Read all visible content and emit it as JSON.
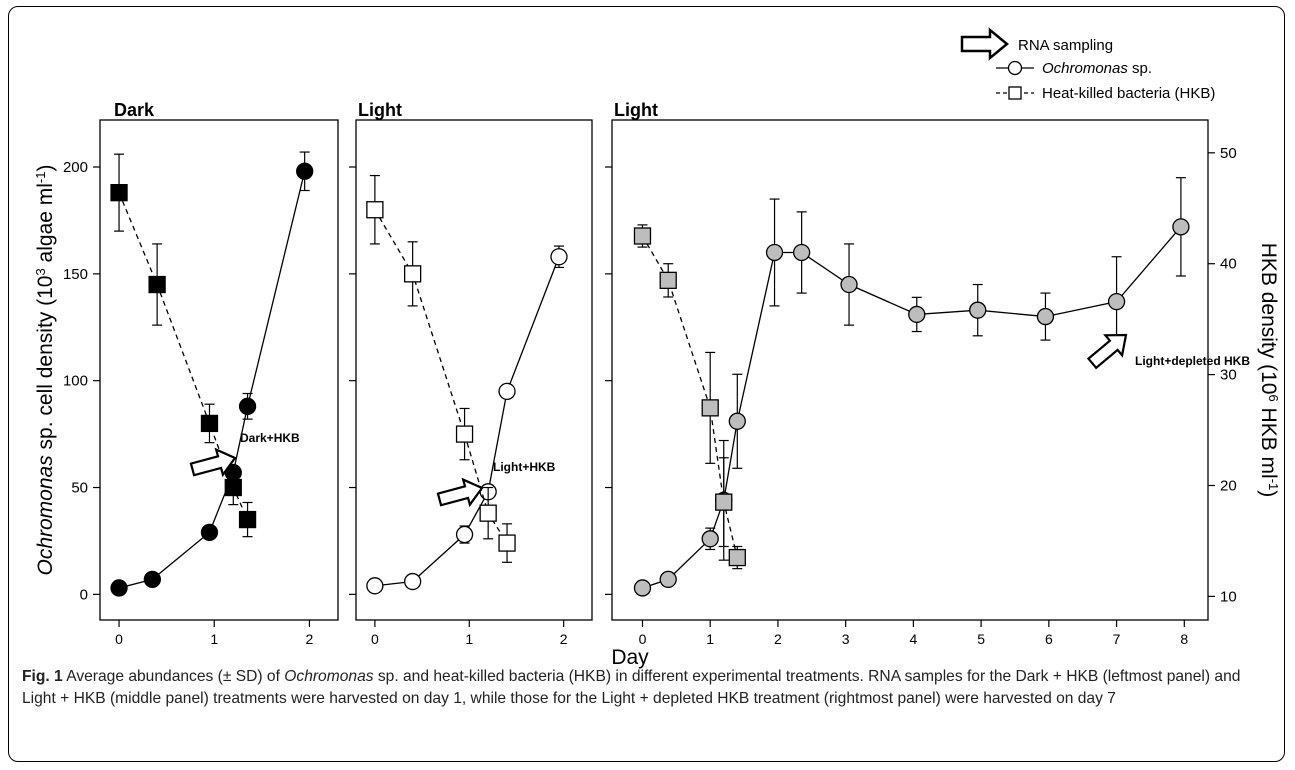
{
  "legend": {
    "arrow_label": "RNA sampling",
    "ochro_label_italic": "Ochromonas",
    "ochro_label_rest": " sp.",
    "hkb_label": "Heat-killed bacteria (HKB)"
  },
  "y_left_label": {
    "italic": "Ochromonas",
    "text": " sp. cell density (10",
    "sup": "3",
    "text2": " algae ml",
    "sup2": "-1",
    "text3": ")"
  },
  "y_right_label": {
    "text": "HKB density (10",
    "sup": "6",
    "text2": " HKB ml",
    "sup2": "-1",
    "text3": ")"
  },
  "x_label": "Day",
  "chart_data": [
    {
      "type": "scatter",
      "title": "Dark",
      "xlim": [
        -0.2,
        2.3
      ],
      "ylim": [
        -12,
        222
      ],
      "xticks": [
        0,
        1,
        2
      ],
      "yticks": [
        0,
        50,
        100,
        150,
        200
      ],
      "annotation": "Dark+HKB",
      "fill": "#000000",
      "series": [
        {
          "name": "Ochromonas sp.",
          "marker": "circle",
          "x": [
            0,
            0.35,
            0.95,
            1.2,
            1.35,
            1.95
          ],
          "y": [
            3,
            7,
            29,
            57,
            88,
            198
          ],
          "err": [
            0,
            0,
            0,
            3,
            6,
            9
          ]
        },
        {
          "name": "Heat-killed bacteria (HKB)",
          "marker": "square",
          "x": [
            0,
            0.4,
            0.95,
            1.2,
            1.35
          ],
          "y": [
            188,
            145,
            80,
            50,
            35
          ],
          "err": [
            18,
            19,
            9,
            8,
            8
          ]
        }
      ]
    },
    {
      "type": "scatter",
      "title": "Light",
      "xlim": [
        -0.2,
        2.3
      ],
      "ylim": [
        -12,
        222
      ],
      "xticks": [
        0,
        1,
        2
      ],
      "yticks": [
        0,
        50,
        100,
        150,
        200
      ],
      "annotation": "Light+HKB",
      "fill": "#ffffff",
      "series": [
        {
          "name": "Ochromonas sp.",
          "marker": "circle",
          "x": [
            0,
            0.4,
            0.95,
            1.2,
            1.4,
            1.95
          ],
          "y": [
            4,
            6,
            28,
            48,
            95,
            158
          ],
          "err": [
            0,
            0,
            4,
            3,
            0,
            5
          ]
        },
        {
          "name": "Heat-killed bacteria (HKB)",
          "marker": "square",
          "x": [
            0,
            0.4,
            0.95,
            1.2,
            1.4
          ],
          "y": [
            180,
            150,
            75,
            38,
            24
          ],
          "err": [
            16,
            15,
            12,
            12,
            9
          ]
        }
      ]
    },
    {
      "type": "scatter",
      "title": "Light",
      "xlim": [
        -0.45,
        8.35
      ],
      "ylim": [
        -12,
        222
      ],
      "y2lim": [
        7.87,
        52.96
      ],
      "xticks": [
        0,
        1,
        2,
        3,
        4,
        5,
        6,
        7,
        8
      ],
      "yticks": [
        0,
        50,
        100,
        150,
        200
      ],
      "y2ticks": [
        10,
        20,
        30,
        40,
        50
      ],
      "annotation": "Light+depleted HKB",
      "fill": "#bdbdbd",
      "series": [
        {
          "name": "Ochromonas sp.",
          "marker": "circle",
          "axis": "left",
          "x": [
            0,
            0.38,
            1,
            1.2,
            1.4,
            1.95,
            2.35,
            3.05,
            4.05,
            4.95,
            5.95,
            7,
            7.95
          ],
          "y": [
            3,
            7,
            26,
            44,
            81,
            160,
            160,
            145,
            131,
            133,
            130,
            137,
            172
          ],
          "err": [
            0,
            0,
            5,
            28,
            22,
            25,
            19,
            19,
            8,
            12,
            11,
            21,
            23
          ]
        },
        {
          "name": "Heat-killed bacteria (HKB)",
          "marker": "square",
          "axis": "right",
          "x": [
            0,
            0.38,
            1,
            1.2,
            1.4
          ],
          "y": [
            42.5,
            38.5,
            27.0,
            18.5,
            13.5
          ],
          "err": [
            1.0,
            1.5,
            5.0,
            4.0,
            1.0
          ]
        }
      ]
    }
  ],
  "caption": {
    "fig_label": "Fig. 1",
    "p1": " Average abundances (± SD) of ",
    "i1": "Ochromonas",
    "p2": " sp. and heat-killed bacteria (HKB) in different experimental treatments. RNA samples for the Dark + HKB (leftmost panel) and Light + HKB (middle panel) treatments were harvested on day 1, while those for the Light + depleted HKB treatment (rightmost panel) were harvested on day 7"
  }
}
